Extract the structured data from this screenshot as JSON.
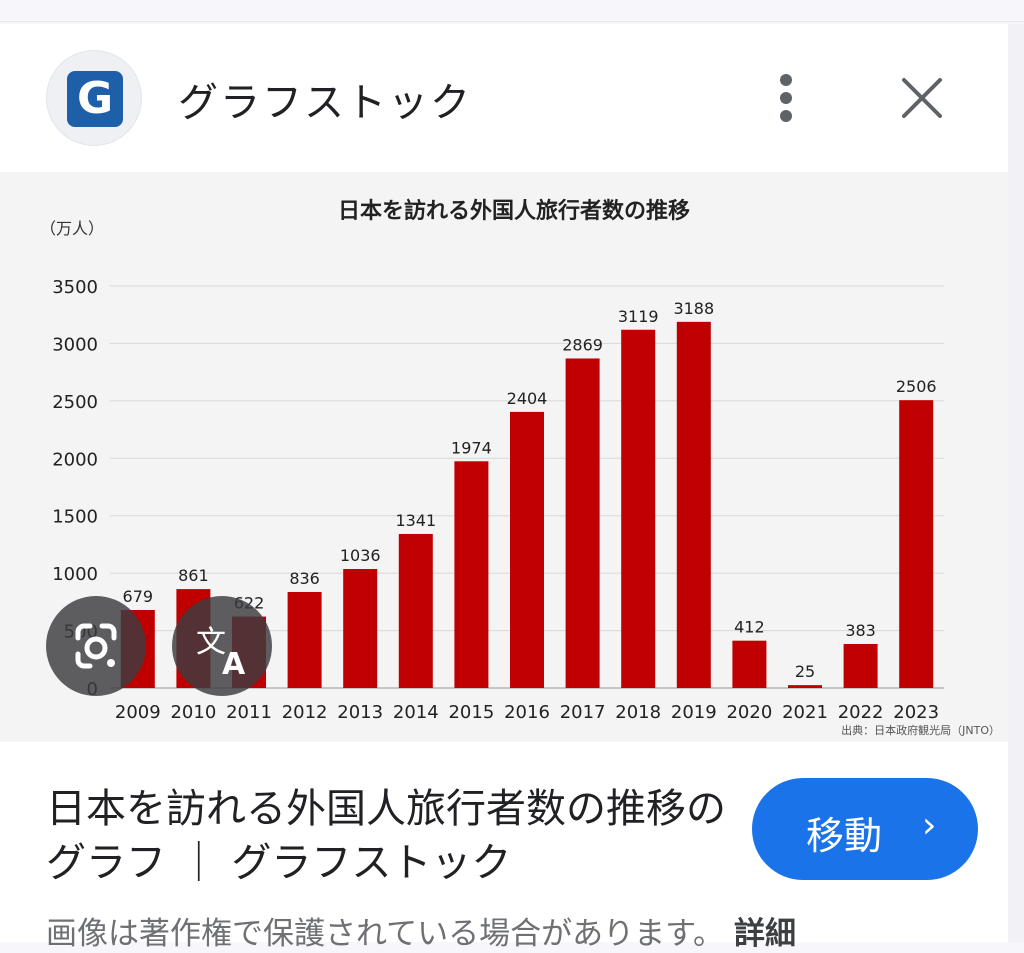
{
  "header": {
    "logo_letter": "G",
    "site_name": "グラフストック",
    "more_icon": "more-vert-icon",
    "close_icon": "close-icon"
  },
  "overlay_buttons": {
    "lens_icon": "google-lens-icon",
    "translate_icon": "translate-icon",
    "translate_glyph_a": "文",
    "translate_glyph_b": "A"
  },
  "caption": {
    "title": "日本を訪れる外国人旅行者数の推移のグラフ ｜ グラフストック",
    "visit_label": "移動",
    "visit_chevron": "›",
    "notice": "画像は著作権で保護されている場合があります。",
    "details_link": "詳細"
  },
  "colors": {
    "bar": "#c00000",
    "accent": "#1a73e8",
    "brand": "#1f5ea8"
  },
  "chart_data": {
    "type": "bar",
    "title": "日本を訪れる外国人旅行者数の推移",
    "unit_label": "（万人）",
    "source": "出典：日本政府観光局（JNTO）",
    "categories": [
      "2009",
      "2010",
      "2011",
      "2012",
      "2013",
      "2014",
      "2015",
      "2016",
      "2017",
      "2018",
      "2019",
      "2020",
      "2021",
      "2022",
      "2023"
    ],
    "values": [
      679,
      861,
      622,
      836,
      1036,
      1341,
      1974,
      2404,
      2869,
      3119,
      3188,
      412,
      25,
      383,
      2506
    ],
    "yticks": [
      0,
      500,
      1000,
      1500,
      2000,
      2500,
      3000,
      3500
    ],
    "ylim": [
      0,
      3500
    ],
    "grid": true
  }
}
